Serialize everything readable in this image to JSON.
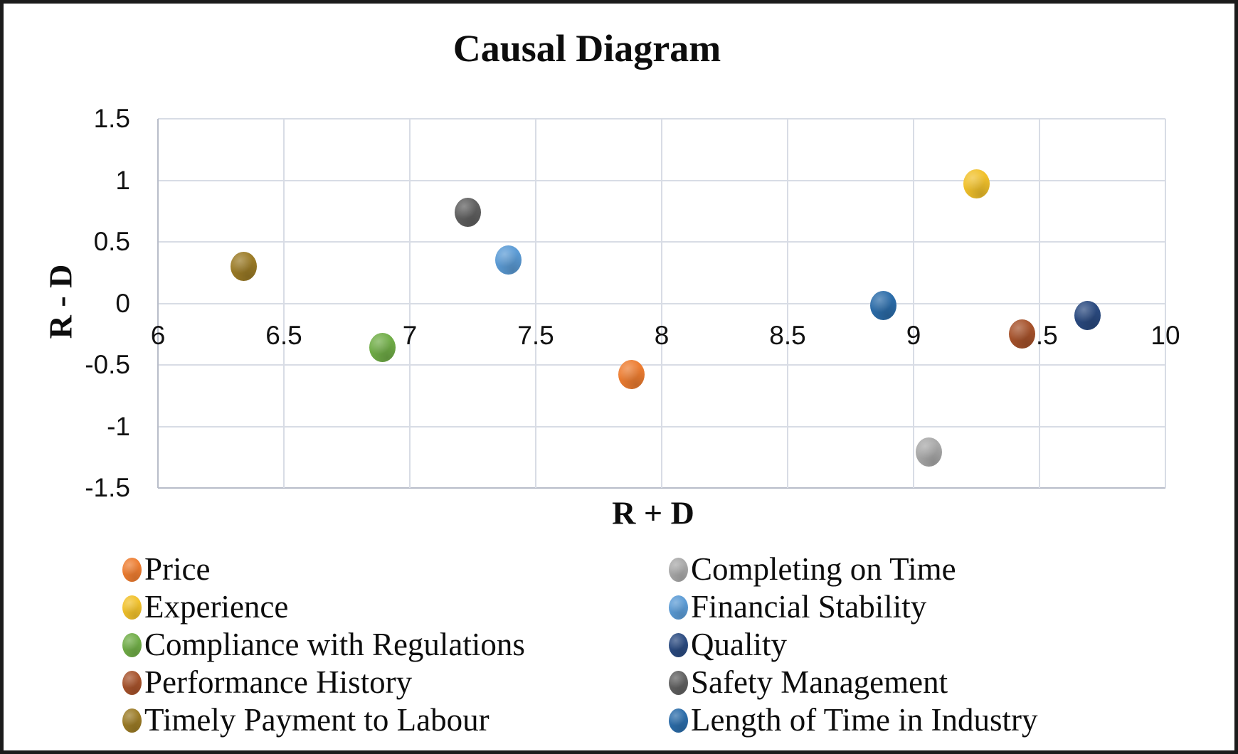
{
  "chart_data": {
    "type": "scatter",
    "title": "Causal Diagram",
    "xlabel": "R + D",
    "ylabel": "R - D",
    "xlim": [
      6,
      10
    ],
    "ylim": [
      -1.5,
      1.5
    ],
    "grid": true,
    "legend_position": "bottom-two-column",
    "x_ticks": [
      {
        "value": 6,
        "label": "6"
      },
      {
        "value": 6.5,
        "label": "6.5"
      },
      {
        "value": 7,
        "label": "7"
      },
      {
        "value": 7.5,
        "label": "7.5"
      },
      {
        "value": 8,
        "label": "8"
      },
      {
        "value": 8.5,
        "label": "8.5"
      },
      {
        "value": 9,
        "label": "9"
      },
      {
        "value": 9.5,
        "label": "9.5"
      },
      {
        "value": 10,
        "label": "10"
      }
    ],
    "y_ticks": [
      {
        "value": 1.5,
        "label": "1.5"
      },
      {
        "value": 1,
        "label": "1"
      },
      {
        "value": 0.5,
        "label": "0.5"
      },
      {
        "value": 0,
        "label": "0"
      },
      {
        "value": -0.5,
        "label": "-0.5"
      },
      {
        "value": -1,
        "label": "-1"
      },
      {
        "value": -1.5,
        "label": "-1.5"
      }
    ],
    "series": [
      {
        "name": "Price",
        "color": "#ED7D31",
        "x": 7.88,
        "y": -0.58
      },
      {
        "name": "Completing on Time",
        "color": "#A9A9A9",
        "x": 9.06,
        "y": -1.21
      },
      {
        "name": "Experience",
        "color": "#F1C12B",
        "x": 9.25,
        "y": 0.97
      },
      {
        "name": "Financial Stability",
        "color": "#5B9BD5",
        "x": 7.39,
        "y": 0.35
      },
      {
        "name": "Compliance with Regulations",
        "color": "#70AD47",
        "x": 6.89,
        "y": -0.36
      },
      {
        "name": "Quality",
        "color": "#2A4A80",
        "x": 9.69,
        "y": -0.1
      },
      {
        "name": "Performance History",
        "color": "#A6522B",
        "x": 9.43,
        "y": -0.25
      },
      {
        "name": "Safety Management",
        "color": "#606060",
        "x": 7.23,
        "y": 0.74
      },
      {
        "name": "Timely Payment to Labour",
        "color": "#9B7B26",
        "x": 6.34,
        "y": 0.3
      },
      {
        "name": "Length of Time in Industry",
        "color": "#2B6CA9",
        "x": 8.88,
        "y": -0.02
      }
    ],
    "colors": {
      "grid": "#d8dce5",
      "axis_line": "#b8bdc9",
      "text": "#0d0d0d",
      "frame_border": "#1b1b1b",
      "background": "#ffffff"
    }
  }
}
